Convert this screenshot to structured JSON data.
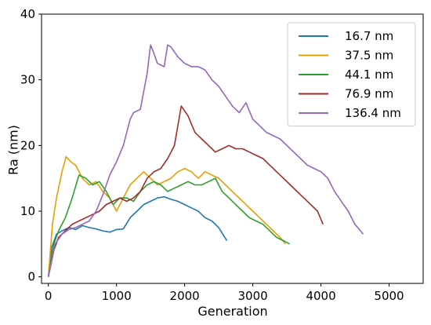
{
  "chart_data": {
    "type": "line",
    "title": "",
    "xlabel": "Generation",
    "ylabel": "Ra (nm)",
    "xlim": [
      -100,
      5500
    ],
    "ylim": [
      -1,
      40
    ],
    "xticks": [
      0,
      1000,
      2000,
      3000,
      4000,
      5000
    ],
    "yticks": [
      0,
      10,
      20,
      30,
      40
    ],
    "grid": false,
    "legend_position": "top-right",
    "series": [
      {
        "name": "16.7 nm",
        "color": "#1f77b4",
        "x": [
          0,
          50,
          120,
          200,
          300,
          400,
          500,
          600,
          700,
          800,
          900,
          1000,
          1100,
          1200,
          1300,
          1400,
          1500,
          1600,
          1700,
          1800,
          1900,
          2000,
          2100,
          2200,
          2300,
          2400,
          2500,
          2620
        ],
        "y": [
          0,
          4.5,
          6.5,
          7.0,
          7.5,
          7.2,
          7.8,
          7.5,
          7.3,
          7.0,
          6.8,
          7.2,
          7.3,
          9.0,
          10.0,
          11.0,
          11.5,
          12.0,
          12.2,
          11.8,
          11.5,
          11.0,
          10.5,
          10.0,
          9.0,
          8.5,
          7.5,
          5.5
        ]
      },
      {
        "name": "37.5 nm",
        "color": "#e69f00",
        "x": [
          0,
          60,
          120,
          200,
          260,
          330,
          400,
          500,
          600,
          700,
          800,
          900,
          1000,
          1100,
          1200,
          1300,
          1400,
          1500,
          1600,
          1700,
          1800,
          1900,
          2000,
          2100,
          2200,
          2300,
          2400,
          2500,
          2600,
          2700,
          2800,
          2900,
          3000,
          3100,
          3200,
          3300,
          3400,
          3480
        ],
        "y": [
          0,
          8,
          12,
          16,
          18.3,
          17.5,
          17,
          15,
          14,
          14.5,
          13,
          12,
          10,
          12,
          14,
          15,
          16,
          15,
          14,
          14.5,
          15,
          16,
          16.5,
          16,
          15,
          16,
          15.5,
          15,
          14,
          13,
          12,
          11,
          10,
          9,
          8,
          7,
          6,
          5
        ]
      },
      {
        "name": "44.1 nm",
        "color": "#2ca02c",
        "x": [
          0,
          80,
          150,
          250,
          350,
          450,
          550,
          650,
          750,
          850,
          950,
          1050,
          1150,
          1250,
          1350,
          1450,
          1550,
          1650,
          1750,
          1850,
          1950,
          2050,
          2150,
          2250,
          2350,
          2450,
          2550,
          2650,
          2750,
          2850,
          2950,
          3050,
          3150,
          3250,
          3350,
          3450,
          3540
        ],
        "y": [
          0,
          5,
          7,
          9,
          12,
          15.5,
          15,
          14,
          14.5,
          13,
          11,
          12,
          12,
          11.5,
          13,
          14,
          14.5,
          14,
          13,
          13.5,
          14,
          14.5,
          14,
          14,
          14.5,
          15,
          13,
          12,
          11,
          10,
          9,
          8.5,
          8,
          7,
          6,
          5.5,
          5
        ]
      },
      {
        "name": "76.9 nm",
        "color": "#a52a2a",
        "x": [
          0,
          80,
          150,
          250,
          350,
          450,
          550,
          650,
          750,
          850,
          950,
          1050,
          1150,
          1250,
          1350,
          1450,
          1550,
          1650,
          1750,
          1850,
          1950,
          2050,
          2150,
          2250,
          2350,
          2450,
          2550,
          2650,
          2750,
          2850,
          2950,
          3050,
          3150,
          3250,
          3350,
          3450,
          3550,
          3650,
          3750,
          3850,
          3950,
          4030
        ],
        "y": [
          0,
          4,
          6,
          7,
          8,
          8.5,
          9,
          9.5,
          10,
          11,
          11.5,
          12,
          11.5,
          12,
          13,
          15,
          16,
          16.5,
          18,
          20,
          26,
          24.5,
          22,
          21,
          20,
          19,
          19.5,
          20,
          19.5,
          19.5,
          19,
          18.5,
          18,
          17,
          16,
          15,
          14,
          13,
          12,
          11,
          10,
          8
        ]
      },
      {
        "name": "136.4 nm",
        "color": "#9467bd",
        "x": [
          0,
          100,
          200,
          300,
          400,
          500,
          600,
          700,
          800,
          900,
          1000,
          1100,
          1200,
          1250,
          1350,
          1450,
          1500,
          1550,
          1600,
          1700,
          1750,
          1800,
          1900,
          2000,
          2100,
          2200,
          2300,
          2400,
          2500,
          2600,
          2700,
          2800,
          2900,
          3000,
          3100,
          3200,
          3300,
          3400,
          3500,
          3600,
          3700,
          3800,
          3900,
          4000,
          4100,
          4200,
          4300,
          4400,
          4500,
          4620
        ],
        "y": [
          0,
          5,
          6.5,
          7.2,
          7.5,
          8.0,
          8.5,
          10.0,
          12.5,
          15.5,
          17.5,
          20,
          24,
          25,
          25.5,
          31,
          35.3,
          34,
          32.5,
          32,
          35.3,
          35,
          33.5,
          32.5,
          32,
          32,
          31.5,
          30,
          29,
          27.5,
          26,
          25,
          26.5,
          24,
          23,
          22,
          21.5,
          21,
          20,
          19,
          18,
          17,
          16.5,
          16,
          15,
          13,
          11.5,
          10,
          8,
          6.5
        ]
      }
    ]
  }
}
